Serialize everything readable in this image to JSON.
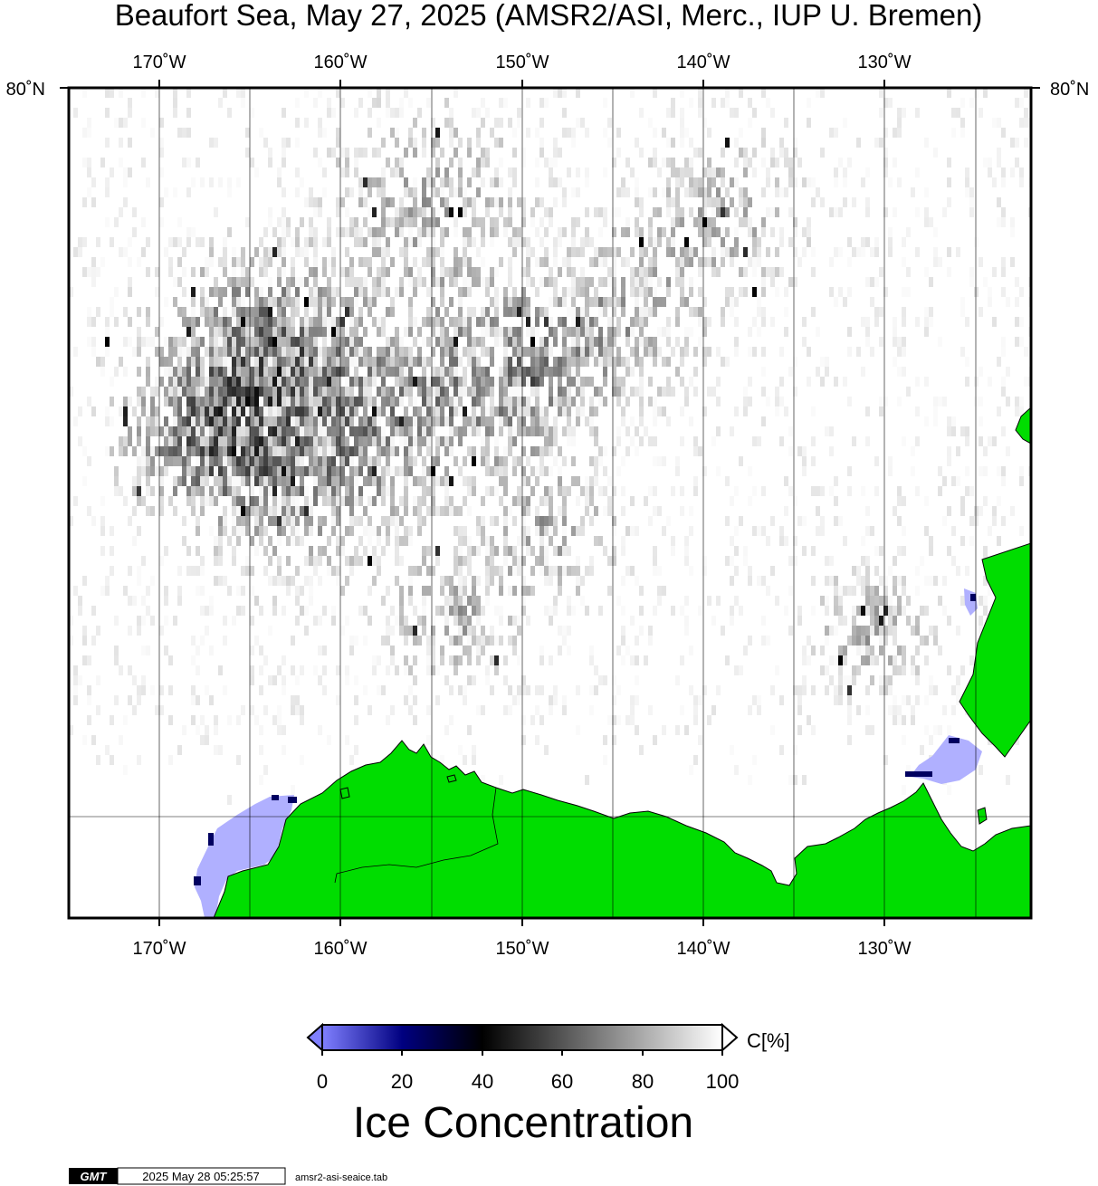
{
  "title": "Beaufort Sea, May 27, 2025 (AMSR2/ASI, Merc., IUP U. Bremen)",
  "map": {
    "projection": "Mercator",
    "longitude_ticks": [
      "170˚W",
      "160˚W",
      "150˚W",
      "140˚W",
      "130˚W"
    ],
    "latitude_ticks": [
      "80˚N"
    ],
    "land_color": "#00dd00",
    "open_water_color": "#b0b0ff",
    "background_color": "#ffffff"
  },
  "colorbar": {
    "title": "Ice Concentration",
    "unit_label": "C[%]",
    "tick_labels": [
      "0",
      "20",
      "40",
      "60",
      "80",
      "100"
    ],
    "range": [
      0,
      100
    ],
    "stops": [
      {
        "value": 0,
        "color": "#8080ff"
      },
      {
        "value": 20,
        "color": "#000080"
      },
      {
        "value": 40,
        "color": "#000000"
      },
      {
        "value": 100,
        "color": "#ffffff"
      }
    ]
  },
  "footer": {
    "logo_text": "GMT",
    "timestamp": "2025 May 28 05:25:57",
    "source_file": "amsr2-asi-seaice.tab"
  }
}
